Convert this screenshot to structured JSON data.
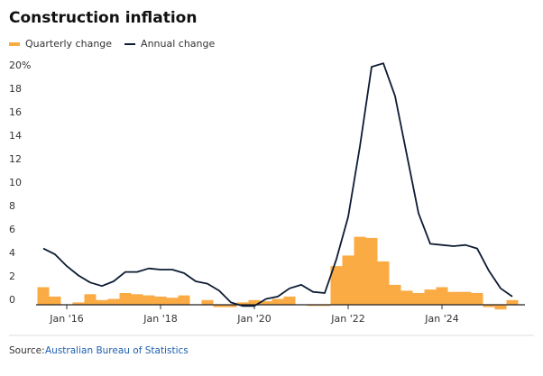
{
  "chart_data": {
    "type": "bar-line",
    "title": "Construction inflation",
    "categories": [
      null,
      null,
      "Jan '16",
      null,
      null,
      null,
      null,
      null,
      null,
      null,
      "Jan '18",
      null,
      null,
      null,
      null,
      null,
      null,
      null,
      "Jan '20",
      null,
      null,
      null,
      null,
      null,
      null,
      null,
      "Jan '22",
      null,
      null,
      null,
      null,
      null,
      null,
      null,
      "Jan '24",
      null,
      null,
      null,
      null,
      null,
      null
    ],
    "series": [
      {
        "name": "Quarterly change",
        "color": "#fbab43",
        "kind": "bar",
        "values": [
          1.5,
          0.7,
          0.0,
          0.2,
          0.9,
          0.4,
          0.5,
          1.0,
          0.9,
          0.8,
          0.7,
          0.6,
          0.8,
          0.0,
          0.4,
          -0.2,
          -0.2,
          0.2,
          0.4,
          0.3,
          0.5,
          0.7,
          0.0,
          -0.1,
          -0.1,
          3.3,
          4.2,
          5.8,
          5.7,
          3.7,
          1.7,
          1.2,
          1.0,
          1.3,
          1.5,
          1.1,
          1.1,
          1.0,
          -0.2,
          -0.4,
          0.4
        ]
      },
      {
        "name": "Annual change",
        "color": "#0d1b33",
        "kind": "line",
        "values": [
          4.8,
          4.3,
          3.3,
          2.5,
          1.9,
          1.6,
          2.0,
          2.8,
          2.8,
          3.1,
          3.0,
          3.0,
          2.7,
          2.0,
          1.8,
          1.2,
          0.2,
          -0.1,
          -0.1,
          0.5,
          0.7,
          1.4,
          1.7,
          1.1,
          1.0,
          3.9,
          7.5,
          13.5,
          20.3,
          20.6,
          17.8,
          12.8,
          7.8,
          5.2,
          5.1,
          5.0,
          5.1,
          4.8,
          2.9,
          1.4,
          0.7
        ]
      }
    ],
    "ylim": [
      -0.5,
      21
    ],
    "yticks": [
      0,
      2,
      4,
      6,
      8,
      10,
      12,
      14,
      16,
      18,
      {
        "value": 20,
        "label": "20%"
      }
    ],
    "grid": false,
    "source_label": "Source:",
    "source": "Australian Bureau of Statistics"
  }
}
